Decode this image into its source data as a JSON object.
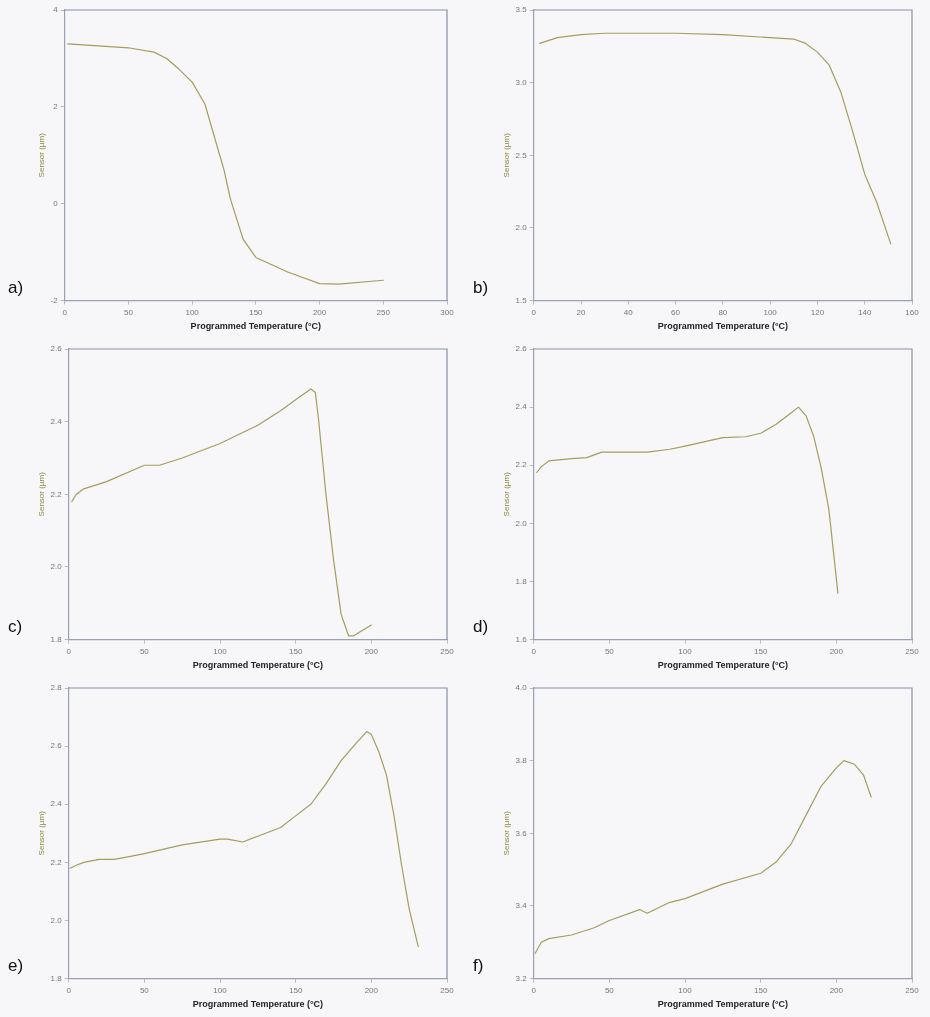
{
  "chart_data": [
    {
      "type": "line",
      "xlabel": "Programmed Temperature (°C)",
      "ylabel": "Sensor (µm)",
      "annotations": [
        "a)"
      ],
      "xlim": [
        0,
        300
      ],
      "xticks": [
        0,
        50,
        100,
        150,
        200,
        250,
        300
      ],
      "ylim": [
        -2,
        4
      ],
      "yticks": [
        -2,
        0,
        2,
        4
      ],
      "grid": false,
      "legend": false,
      "marker": "none",
      "line_style": "solid",
      "series": [
        {
          "color": "#a39e5c",
          "x": [
            2.5,
            50,
            70,
            80,
            90,
            100,
            110,
            120,
            125,
            130,
            140,
            150,
            175,
            200,
            215,
            250
          ],
          "values": [
            3.3,
            3.22,
            3.13,
            3.0,
            2.77,
            2.51,
            2.06,
            1.15,
            0.7,
            0.1,
            -0.73,
            -1.11,
            -1.41,
            -1.65,
            -1.66,
            -1.58
          ]
        }
      ]
    },
    {
      "type": "line",
      "xlabel": "Programmed Temperature (°C)",
      "ylabel": "Sensor (µm)",
      "annotations": [
        "b)"
      ],
      "xlim": [
        0,
        160
      ],
      "xticks": [
        0,
        20,
        40,
        60,
        80,
        100,
        120,
        140,
        160
      ],
      "ylim": [
        1.5,
        3.5
      ],
      "yticks": [
        {
          "value": 1.5,
          "label": "1.5"
        },
        {
          "value": 2,
          "label": "2.0"
        },
        {
          "value": 2.5,
          "label": "2.5"
        },
        {
          "value": 3,
          "label": "3.0"
        },
        {
          "value": 3.5,
          "label": "3.5"
        }
      ],
      "grid": false,
      "legend": false,
      "marker": "none",
      "line_style": "solid",
      "series": [
        {
          "color": "#a39e5c",
          "x": [
            2.5,
            10,
            20,
            30,
            50,
            60,
            80,
            100,
            110,
            115,
            120,
            125,
            130,
            135,
            140,
            145,
            151
          ],
          "values": [
            3.27,
            3.31,
            3.33,
            3.34,
            3.34,
            3.34,
            3.33,
            3.31,
            3.3,
            3.27,
            3.21,
            3.12,
            2.93,
            2.66,
            2.37,
            2.18,
            1.89
          ]
        }
      ]
    },
    {
      "type": "line",
      "xlabel": "Programmed Temperature (°C)",
      "ylabel": "Sensor (µm)",
      "annotations": [
        "c)"
      ],
      "xlim": [
        0,
        250
      ],
      "xticks": [
        0,
        50,
        100,
        150,
        200,
        250
      ],
      "ylim": [
        1.8,
        2.6
      ],
      "yticks": [
        {
          "value": 1.8,
          "label": "1.8"
        },
        {
          "value": 2,
          "label": "2.0"
        },
        {
          "value": 2.2,
          "label": "2.2"
        },
        {
          "value": 2.4,
          "label": "2.4"
        },
        {
          "value": 2.6,
          "label": "2.6"
        }
      ],
      "grid": false,
      "legend": false,
      "marker": "none",
      "line_style": "solid",
      "series": [
        {
          "color": "#a39e5c",
          "x": [
            2,
            5,
            10,
            25,
            50,
            60,
            75,
            100,
            125,
            140,
            150,
            160,
            163,
            165,
            170,
            175,
            180,
            185,
            188,
            200
          ],
          "values": [
            2.18,
            2.2,
            2.215,
            2.235,
            2.28,
            2.28,
            2.3,
            2.34,
            2.39,
            2.43,
            2.46,
            2.49,
            2.48,
            2.41,
            2.2,
            2.02,
            1.87,
            1.81,
            1.81,
            1.84
          ]
        }
      ]
    },
    {
      "type": "line",
      "xlabel": "Programmed Temperature (°C)",
      "ylabel": "Sensor (µm)",
      "annotations": [
        "d)"
      ],
      "xlim": [
        0,
        250
      ],
      "xticks": [
        0,
        50,
        100,
        150,
        200,
        250
      ],
      "ylim": [
        1.6,
        2.6
      ],
      "yticks": [
        {
          "value": 1.6,
          "label": "1.6"
        },
        {
          "value": 1.8,
          "label": "1.8"
        },
        {
          "value": 2,
          "label": "2.0"
        },
        {
          "value": 2.2,
          "label": "2.2"
        },
        {
          "value": 2.4,
          "label": "2.4"
        },
        {
          "value": 2.6,
          "label": "2.6"
        }
      ],
      "grid": false,
      "legend": false,
      "marker": "none",
      "line_style": "solid",
      "series": [
        {
          "color": "#a39e5c",
          "x": [
            2,
            5,
            10,
            25,
            35,
            45,
            75,
            90,
            100,
            125,
            140,
            150,
            160,
            170,
            175,
            180,
            185,
            190,
            195,
            200,
            201
          ],
          "values": [
            2.175,
            2.195,
            2.215,
            2.223,
            2.226,
            2.245,
            2.245,
            2.255,
            2.266,
            2.295,
            2.298,
            2.31,
            2.34,
            2.38,
            2.4,
            2.37,
            2.3,
            2.19,
            2.05,
            1.81,
            1.76
          ]
        }
      ]
    },
    {
      "type": "line",
      "xlabel": "Programmed Temperature (°C)",
      "ylabel": "Sensor (µm)",
      "annotations": [
        "e)"
      ],
      "xlim": [
        0,
        250
      ],
      "xticks": [
        0,
        50,
        100,
        150,
        200,
        250
      ],
      "ylim": [
        1.8,
        2.8
      ],
      "yticks": [
        {
          "value": 1.8,
          "label": "1.8"
        },
        {
          "value": 2,
          "label": "2.0"
        },
        {
          "value": 2.2,
          "label": "2.2"
        },
        {
          "value": 2.4,
          "label": "2.4"
        },
        {
          "value": 2.6,
          "label": "2.6"
        },
        {
          "value": 2.8,
          "label": "2.8"
        }
      ],
      "grid": false,
      "legend": false,
      "marker": "none",
      "line_style": "solid",
      "series": [
        {
          "color": "#a39e5c",
          "x": [
            1,
            5,
            10,
            20,
            30,
            40,
            50,
            75,
            100,
            105,
            115,
            125,
            140,
            150,
            160,
            170,
            180,
            190,
            197,
            200,
            205,
            210,
            215,
            220,
            225,
            231
          ],
          "values": [
            2.18,
            2.19,
            2.2,
            2.21,
            2.21,
            2.22,
            2.23,
            2.26,
            2.28,
            2.28,
            2.27,
            2.29,
            2.32,
            2.36,
            2.4,
            2.47,
            2.55,
            2.61,
            2.65,
            2.64,
            2.58,
            2.5,
            2.36,
            2.19,
            2.04,
            1.91
          ]
        }
      ]
    },
    {
      "type": "line",
      "xlabel": "Programmed Temperature (°C)",
      "ylabel": "Sensor (µm)",
      "annotations": [
        "f)"
      ],
      "xlim": [
        0,
        250
      ],
      "xticks": [
        0,
        50,
        100,
        150,
        200,
        250
      ],
      "ylim": [
        3.2,
        4
      ],
      "yticks": [
        {
          "value": 3.2,
          "label": "3.2"
        },
        {
          "value": 3.4,
          "label": "3.4"
        },
        {
          "value": 3.6,
          "label": "3.6"
        },
        {
          "value": 3.8,
          "label": "3.8"
        },
        {
          "value": 4,
          "label": "4.0"
        }
      ],
      "grid": false,
      "legend": false,
      "marker": "none",
      "line_style": "solid",
      "series": [
        {
          "color": "#a39e5c",
          "x": [
            1,
            5,
            10,
            25,
            40,
            50,
            70,
            75,
            90,
            100,
            125,
            150,
            160,
            170,
            180,
            190,
            200,
            205,
            212,
            218,
            223
          ],
          "values": [
            3.27,
            3.3,
            3.31,
            3.32,
            3.34,
            3.36,
            3.39,
            3.38,
            3.41,
            3.42,
            3.46,
            3.49,
            3.52,
            3.57,
            3.65,
            3.73,
            3.78,
            3.8,
            3.79,
            3.76,
            3.7
          ]
        }
      ]
    }
  ]
}
